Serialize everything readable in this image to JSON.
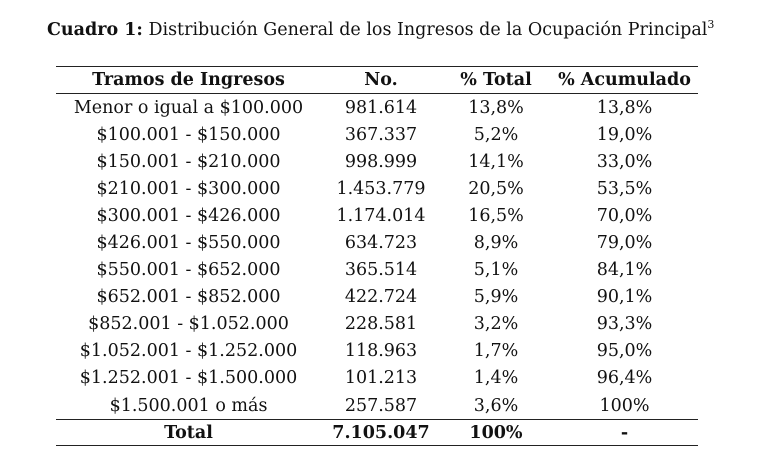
{
  "caption": {
    "label": "Cuadro 1:",
    "text": "Distribución General de los Ingresos de la Ocupación Principal",
    "footnote": "3"
  },
  "table": {
    "headers": [
      "Tramos de Ingresos",
      "No.",
      "% Total",
      "% Acumulado"
    ],
    "rows": [
      [
        "Menor o igual a $100.000",
        "981.614",
        "13,8%",
        "13,8%"
      ],
      [
        "$100.001 - $150.000",
        "367.337",
        "5,2%",
        "19,0%"
      ],
      [
        "$150.001 - $210.000",
        "998.999",
        "14,1%",
        "33,0%"
      ],
      [
        "$210.001 - $300.000",
        "1.453.779",
        "20,5%",
        "53,5%"
      ],
      [
        "$300.001 - $426.000",
        "1.174.014",
        "16,5%",
        "70,0%"
      ],
      [
        "$426.001 - $550.000",
        "634.723",
        "8,9%",
        "79,0%"
      ],
      [
        "$550.001 - $652.000",
        "365.514",
        "5,1%",
        "84,1%"
      ],
      [
        "$652.001 - $852.000",
        "422.724",
        "5,9%",
        "90,1%"
      ],
      [
        "$852.001 - $1.052.000",
        "228.581",
        "3,2%",
        "93,3%"
      ],
      [
        "$1.052.001 - $1.252.000",
        "118.963",
        "1,7%",
        "95,0%"
      ],
      [
        "$1.252.001 - $1.500.000",
        "101.213",
        "1,4%",
        "96,4%"
      ],
      [
        "$1.500.001 o más",
        "257.587",
        "3,6%",
        "100%"
      ]
    ],
    "total": [
      "Total",
      "7.105.047",
      "100%",
      "-"
    ]
  }
}
